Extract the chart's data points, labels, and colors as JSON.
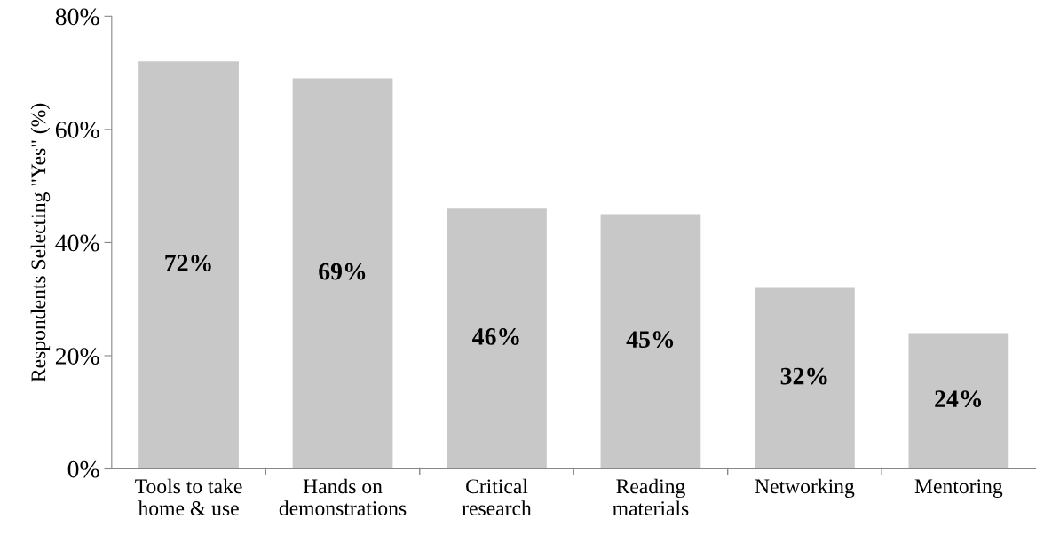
{
  "chart_data": {
    "type": "bar",
    "ylabel": "Respondents Selecting \"Yes\" (%)",
    "categories": [
      "Tools to take\nhome & use",
      "Hands on\ndemonstrations",
      "Critical\nresearch",
      "Reading\nmaterials",
      "Networking",
      "Mentoring"
    ],
    "values": [
      72,
      69,
      46,
      45,
      32,
      24
    ],
    "value_labels": [
      "72%",
      "69%",
      "46%",
      "45%",
      "32%",
      "24%"
    ],
    "color": "#c8c8c8",
    "ylim": [
      0,
      80
    ],
    "yticks": [
      {
        "value": 0,
        "label": "0%"
      },
      {
        "value": 20,
        "label": "20%"
      },
      {
        "value": 40,
        "label": "40%"
      },
      {
        "value": 60,
        "label": "60%"
      },
      {
        "value": 80,
        "label": "80%"
      }
    ],
    "grid": false
  }
}
